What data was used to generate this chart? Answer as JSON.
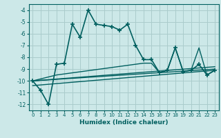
{
  "title": "",
  "xlabel": "Humidex (Indice chaleur)",
  "bg_color": "#cce8e8",
  "line_color": "#005f5f",
  "grid_color": "#aacccc",
  "xlim": [
    -0.5,
    23.5
  ],
  "ylim": [
    -12.5,
    -3.5
  ],
  "yticks": [
    -12,
    -11,
    -10,
    -9,
    -8,
    -7,
    -6,
    -5,
    -4
  ],
  "xticks": [
    0,
    1,
    2,
    3,
    4,
    5,
    6,
    7,
    8,
    9,
    10,
    11,
    12,
    13,
    14,
    15,
    16,
    17,
    18,
    19,
    20,
    21,
    22,
    23
  ],
  "series": [
    {
      "x": [
        0,
        1,
        2,
        3,
        4,
        5,
        6,
        7,
        8,
        9,
        10,
        11,
        12,
        13,
        14,
        15,
        16,
        17,
        18,
        19,
        20,
        21,
        22,
        23
      ],
      "y": [
        -10.0,
        -10.8,
        -12.0,
        -8.6,
        -8.5,
        -5.2,
        -6.3,
        -4.0,
        -5.2,
        -5.3,
        -5.4,
        -5.7,
        -5.2,
        -7.0,
        -8.2,
        -8.2,
        -9.3,
        -9.1,
        -7.2,
        -9.2,
        -9.1,
        -8.6,
        -9.5,
        -9.1
      ],
      "marker": "+",
      "ms": 4,
      "lw": 1.2
    },
    {
      "x": [
        0,
        23
      ],
      "y": [
        -10.0,
        -9.0
      ],
      "marker": null,
      "ms": 0,
      "lw": 1.0
    },
    {
      "x": [
        0,
        23
      ],
      "y": [
        -10.4,
        -9.1
      ],
      "marker": null,
      "ms": 0,
      "lw": 1.0
    },
    {
      "x": [
        0,
        23
      ],
      "y": [
        -10.0,
        -8.8
      ],
      "marker": null,
      "ms": 0,
      "lw": 1.0
    },
    {
      "x": [
        0,
        3,
        14,
        15,
        16,
        17,
        18,
        19,
        20,
        21,
        22,
        23
      ],
      "y": [
        -10.0,
        -9.5,
        -8.5,
        -8.5,
        -9.3,
        -9.1,
        -7.2,
        -9.2,
        -9.1,
        -7.2,
        -9.5,
        -9.1
      ],
      "marker": null,
      "ms": 0,
      "lw": 1.0
    }
  ]
}
